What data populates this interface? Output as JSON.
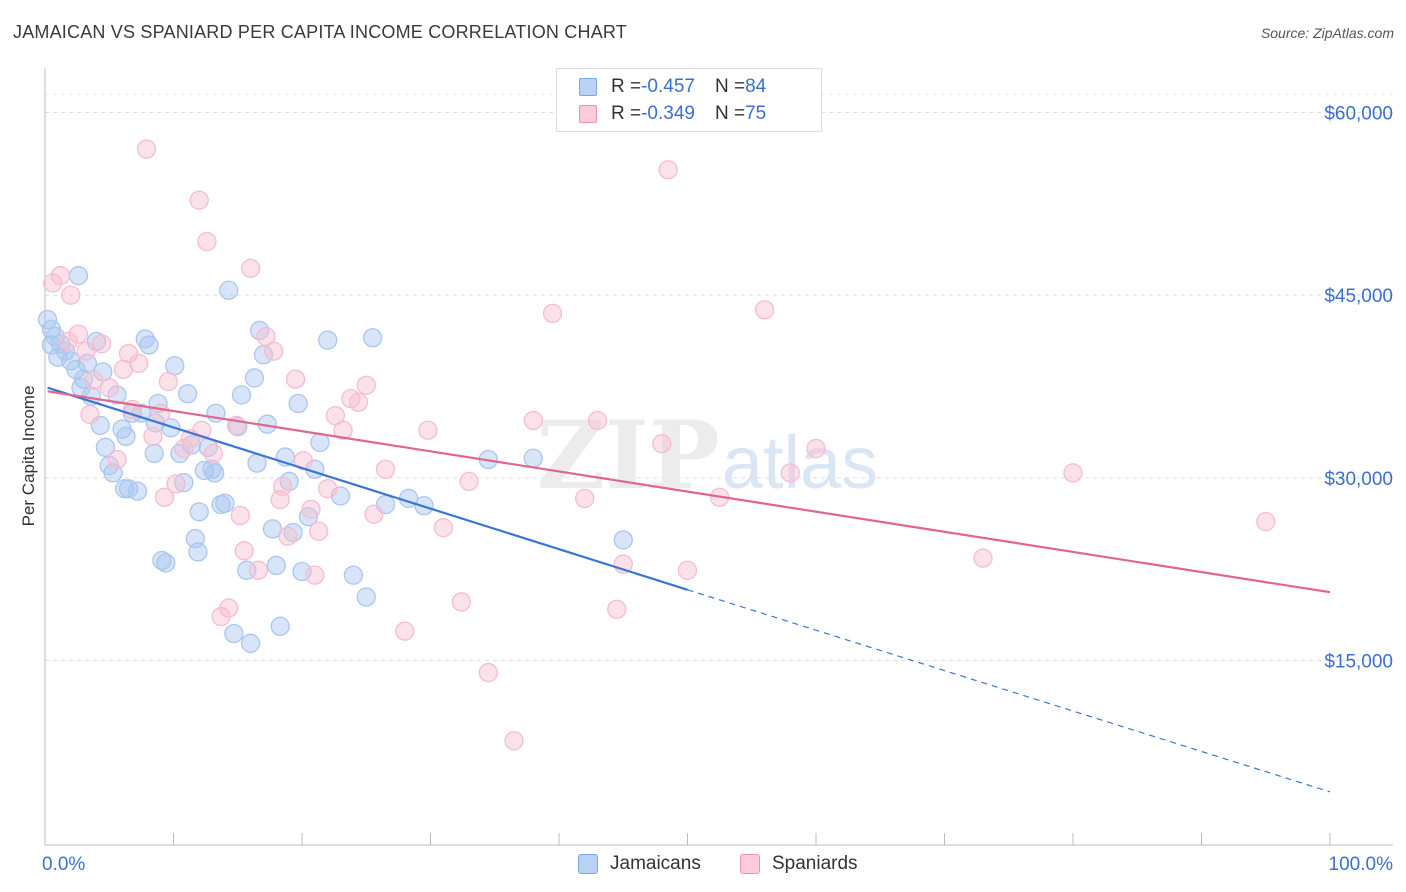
{
  "title": "JAMAICAN VS SPANIARD PER CAPITA INCOME CORRELATION CHART",
  "source": "Source: ZipAtlas.com",
  "watermark": {
    "zip": "ZIP",
    "atlas": "atlas"
  },
  "legend": {
    "rows": [
      {
        "r_label": "R = ",
        "r_value": "-0.457",
        "n_label": "N = ",
        "n_value": "84",
        "color": "#7aa7e6"
      },
      {
        "r_label": "R = ",
        "r_value": "-0.349",
        "n_label": "N = ",
        "n_value": "75",
        "color": "#f090b0"
      }
    ]
  },
  "bottom_legend": {
    "items": [
      {
        "label": "Jamaicans",
        "color": "#7aa7e6"
      },
      {
        "label": "Spaniards",
        "color": "#f090b0"
      }
    ]
  },
  "chart_data": {
    "type": "scatter",
    "title": "JAMAICAN VS SPANIARD PER CAPITA INCOME CORRELATION CHART",
    "xlabel": "",
    "ylabel": "Per Capita Income",
    "xlim": [
      0,
      100
    ],
    "ylim": [
      0,
      63000
    ],
    "x_tick_labels": [
      "0.0%",
      "100.0%"
    ],
    "y_ticks": [
      15000,
      30000,
      45000,
      60000
    ],
    "y_tick_labels": [
      "$15,000",
      "$30,000",
      "$45,000",
      "$60,000"
    ],
    "grid": true,
    "legend_position": "top-center",
    "series": [
      {
        "name": "Jamaicans",
        "color": "#3a76d4",
        "fill": "#a9c6ef",
        "trend": {
          "x0": 0.2,
          "y0": 37400,
          "x1": 50.0,
          "y1": 20800,
          "dash_to_x": 100.0,
          "dash_to_y": 4200
        },
        "points": [
          [
            0.2,
            43000
          ],
          [
            0.5,
            42200
          ],
          [
            0.8,
            41600
          ],
          [
            1.2,
            41000
          ],
          [
            1.6,
            40400
          ],
          [
            2.0,
            39600
          ],
          [
            2.4,
            38900
          ],
          [
            0.5,
            40900
          ],
          [
            2.6,
            46600
          ],
          [
            3.0,
            38100
          ],
          [
            3.3,
            39400
          ],
          [
            3.6,
            36700
          ],
          [
            4.0,
            41200
          ],
          [
            4.3,
            34300
          ],
          [
            4.7,
            32500
          ],
          [
            5.0,
            31000
          ],
          [
            5.3,
            30400
          ],
          [
            5.6,
            36800
          ],
          [
            6.0,
            34000
          ],
          [
            6.3,
            33400
          ],
          [
            6.5,
            29100
          ],
          [
            6.8,
            35300
          ],
          [
            7.2,
            28900
          ],
          [
            7.5,
            35300
          ],
          [
            7.8,
            41400
          ],
          [
            8.1,
            40900
          ],
          [
            8.5,
            32000
          ],
          [
            8.8,
            36100
          ],
          [
            9.1,
            23200
          ],
          [
            9.4,
            23000
          ],
          [
            9.8,
            34100
          ],
          [
            10.1,
            39200
          ],
          [
            10.5,
            32000
          ],
          [
            10.8,
            29600
          ],
          [
            11.1,
            36900
          ],
          [
            11.4,
            32700
          ],
          [
            11.7,
            25000
          ],
          [
            12.0,
            27200
          ],
          [
            12.4,
            30600
          ],
          [
            12.7,
            32500
          ],
          [
            13.0,
            30700
          ],
          [
            13.3,
            35300
          ],
          [
            13.7,
            27800
          ],
          [
            14.0,
            27900
          ],
          [
            14.3,
            45400
          ],
          [
            14.7,
            17200
          ],
          [
            15.0,
            34200
          ],
          [
            15.3,
            36800
          ],
          [
            15.7,
            22400
          ],
          [
            16.0,
            16400
          ],
          [
            16.3,
            38200
          ],
          [
            16.7,
            42100
          ],
          [
            17.0,
            40100
          ],
          [
            17.3,
            34400
          ],
          [
            17.7,
            25800
          ],
          [
            18.0,
            22800
          ],
          [
            18.3,
            17800
          ],
          [
            18.7,
            31700
          ],
          [
            19.0,
            29700
          ],
          [
            19.3,
            25500
          ],
          [
            19.7,
            36100
          ],
          [
            20.0,
            22300
          ],
          [
            21.0,
            30700
          ],
          [
            21.4,
            32900
          ],
          [
            22.0,
            41300
          ],
          [
            23.0,
            28500
          ],
          [
            24.0,
            22000
          ],
          [
            25.0,
            20200
          ],
          [
            25.5,
            41500
          ],
          [
            26.5,
            27800
          ],
          [
            28.3,
            28300
          ],
          [
            29.5,
            27700
          ],
          [
            34.5,
            31500
          ],
          [
            38.0,
            31600
          ],
          [
            45.0,
            24900
          ],
          [
            1.0,
            39900
          ],
          [
            2.8,
            37400
          ],
          [
            4.5,
            38700
          ],
          [
            6.2,
            29100
          ],
          [
            8.6,
            34500
          ],
          [
            11.9,
            23900
          ],
          [
            13.2,
            30400
          ],
          [
            16.5,
            31200
          ],
          [
            20.5,
            26800
          ]
        ]
      },
      {
        "name": "Spaniards",
        "color": "#e0668e",
        "fill": "#f6bcd0",
        "trend": {
          "x0": 0.2,
          "y0": 37100,
          "x1": 100.0,
          "y1": 20600
        },
        "points": [
          [
            0.6,
            46000
          ],
          [
            1.2,
            46600
          ],
          [
            2.0,
            45000
          ],
          [
            2.6,
            41800
          ],
          [
            3.2,
            40400
          ],
          [
            3.8,
            38000
          ],
          [
            4.4,
            41000
          ],
          [
            5.0,
            37400
          ],
          [
            5.6,
            31500
          ],
          [
            6.1,
            38900
          ],
          [
            6.8,
            35600
          ],
          [
            7.3,
            39400
          ],
          [
            7.9,
            57000
          ],
          [
            8.4,
            33400
          ],
          [
            9.0,
            35300
          ],
          [
            9.6,
            37900
          ],
          [
            10.2,
            29500
          ],
          [
            10.8,
            32400
          ],
          [
            11.3,
            33200
          ],
          [
            12.0,
            52800
          ],
          [
            12.6,
            49400
          ],
          [
            13.1,
            32000
          ],
          [
            13.7,
            18600
          ],
          [
            14.3,
            19300
          ],
          [
            14.9,
            34300
          ],
          [
            15.5,
            24000
          ],
          [
            16.0,
            47200
          ],
          [
            16.6,
            22400
          ],
          [
            17.2,
            41600
          ],
          [
            17.8,
            40400
          ],
          [
            18.3,
            28200
          ],
          [
            18.9,
            25200
          ],
          [
            19.5,
            38100
          ],
          [
            20.1,
            31400
          ],
          [
            20.7,
            27400
          ],
          [
            21.3,
            25600
          ],
          [
            22.0,
            29100
          ],
          [
            22.6,
            35100
          ],
          [
            23.2,
            33900
          ],
          [
            23.8,
            36500
          ],
          [
            24.4,
            36200
          ],
          [
            25.0,
            37600
          ],
          [
            25.6,
            27000
          ],
          [
            28.0,
            17400
          ],
          [
            29.8,
            33900
          ],
          [
            31.0,
            25900
          ],
          [
            32.4,
            19800
          ],
          [
            33.0,
            29700
          ],
          [
            34.5,
            14000
          ],
          [
            36.5,
            8400
          ],
          [
            38.0,
            34700
          ],
          [
            39.5,
            43500
          ],
          [
            42.0,
            28300
          ],
          [
            43.0,
            34700
          ],
          [
            44.5,
            19200
          ],
          [
            45.0,
            22900
          ],
          [
            48.5,
            55300
          ],
          [
            50.0,
            22400
          ],
          [
            52.5,
            28400
          ],
          [
            56.0,
            43800
          ],
          [
            58.0,
            30400
          ],
          [
            60.0,
            32400
          ],
          [
            73.0,
            23400
          ],
          [
            80.0,
            30400
          ],
          [
            95.0,
            26400
          ],
          [
            1.8,
            41200
          ],
          [
            3.5,
            35200
          ],
          [
            6.5,
            40200
          ],
          [
            9.3,
            28400
          ],
          [
            12.2,
            33900
          ],
          [
            15.2,
            26900
          ],
          [
            18.5,
            29300
          ],
          [
            21.0,
            22000
          ],
          [
            26.5,
            30700
          ],
          [
            48.0,
            32800
          ]
        ]
      }
    ]
  }
}
